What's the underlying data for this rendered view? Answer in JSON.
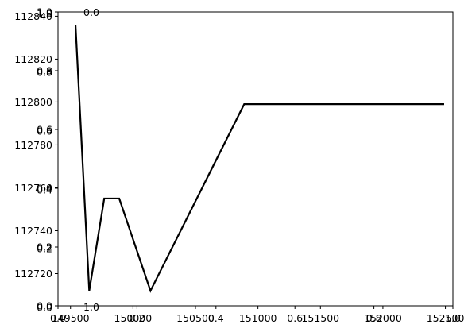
{
  "chart_data": {
    "type": "line",
    "title": "",
    "xlabel": "",
    "ylabel": "",
    "xlim": [
      149400,
      152560
    ],
    "ylim": [
      112705,
      112842
    ],
    "grid": false,
    "line_color": "#000000",
    "x_ticks": [
      "149500",
      "150000",
      "150500",
      "151000",
      "151500",
      "152000",
      "152500"
    ],
    "y_ticks": [
      "112720",
      "112740",
      "112760",
      "112780",
      "112800",
      "112820",
      "112840"
    ],
    "overlay_x_ticks_bottom": [
      "0.0",
      "0.2",
      "0.4",
      "0.6",
      "0.8",
      "1.0"
    ],
    "overlay_y_ticks_left": [
      "0.0",
      "0.2",
      "0.4",
      "0.6",
      "0.8",
      "1.0"
    ],
    "overlay_y_ticks_left_2": [
      "0.0",
      "0.2",
      "0.4",
      "0.6",
      "0.8",
      "1.0"
    ],
    "overlay_top_labels": [
      "0.0",
      "1.0"
    ],
    "series": [
      {
        "x": [
          149540,
          149650,
          149770,
          149890,
          150140,
          150890,
          152490
        ],
        "y": [
          112836,
          112712,
          112755,
          112755,
          112712,
          112799,
          112799
        ]
      }
    ]
  }
}
